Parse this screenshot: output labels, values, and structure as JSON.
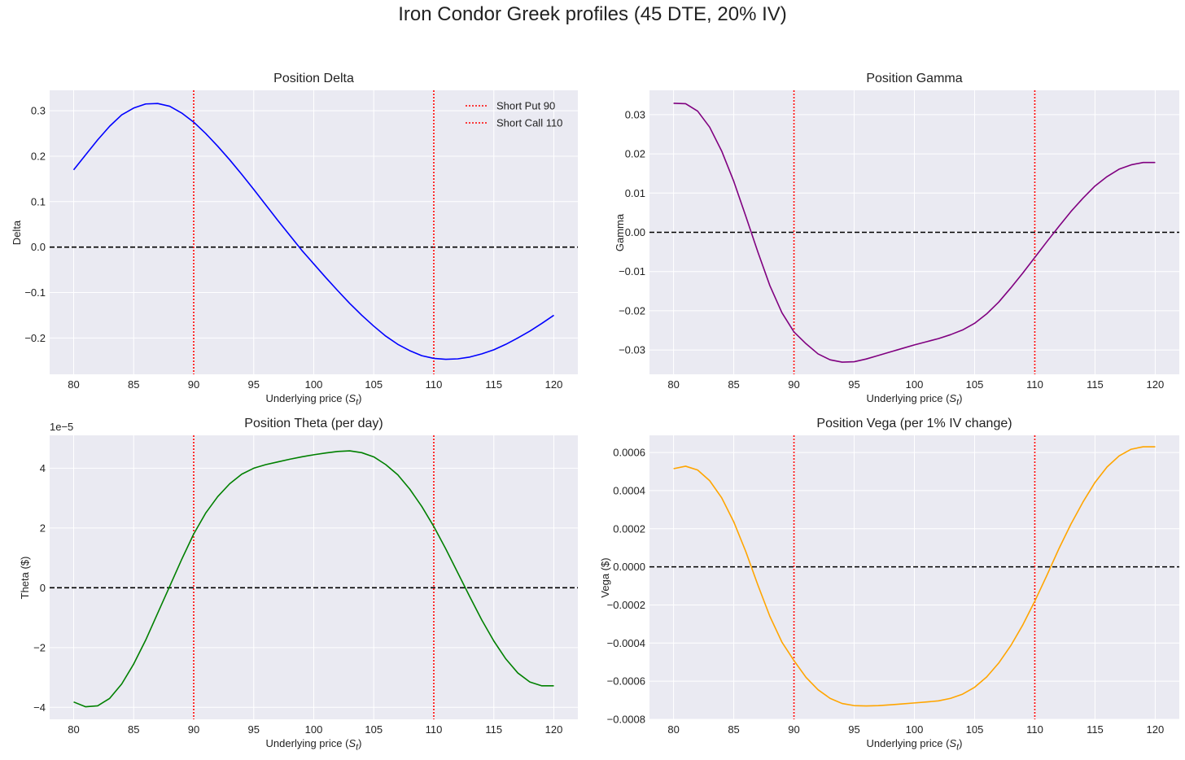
{
  "suptitle": "Iron Condor Greek profiles (45 DTE, 20% IV)",
  "x_values": [
    80,
    81,
    82,
    83,
    84,
    85,
    86,
    87,
    88,
    89,
    90,
    91,
    92,
    93,
    94,
    95,
    96,
    97,
    98,
    99,
    100,
    101,
    102,
    103,
    104,
    105,
    106,
    107,
    108,
    109,
    110,
    111,
    112,
    113,
    114,
    115,
    116,
    117,
    118,
    119,
    120
  ],
  "strikes": {
    "short_put": 90,
    "short_call": 110
  },
  "colors": {
    "reference_line": "#ff0000",
    "zero_line": "#000000",
    "panel_bg": "#eaeaf2",
    "grid": "#ffffff"
  },
  "chart_data": [
    {
      "type": "line",
      "title": "Position Delta",
      "xlabel": "Underlying price ($S_t$)",
      "xlabel_text": "Underlying price (",
      "xlabel_sym": "S",
      "xlabel_sub": "t",
      "xlabel_close": ")",
      "ylabel": "Delta",
      "xlim": [
        78,
        122
      ],
      "ylim": [
        -0.28,
        0.345
      ],
      "xticks": [
        80,
        85,
        90,
        95,
        100,
        105,
        110,
        115,
        120
      ],
      "yticks": [
        -0.2,
        -0.1,
        0.0,
        0.1,
        0.2,
        0.3
      ],
      "ytick_labels": [
        "−0.2",
        "−0.1",
        "0.0",
        "0.1",
        "0.2",
        "0.3"
      ],
      "grid": true,
      "legend": {
        "position": "top-right",
        "entries": [
          "Short Put 90",
          "Short Call 110"
        ]
      },
      "series": [
        {
          "color": "#0000ff",
          "values": [
            0.17,
            0.203,
            0.236,
            0.266,
            0.291,
            0.306,
            0.315,
            0.316,
            0.31,
            0.295,
            0.275,
            0.25,
            0.222,
            0.192,
            0.16,
            0.127,
            0.093,
            0.059,
            0.026,
            -0.007,
            -0.037,
            -0.067,
            -0.096,
            -0.124,
            -0.15,
            -0.174,
            -0.196,
            -0.214,
            -0.228,
            -0.239,
            -0.245,
            -0.247,
            -0.246,
            -0.242,
            -0.235,
            -0.226,
            -0.214,
            -0.2,
            -0.185,
            -0.168,
            -0.15
          ]
        }
      ]
    },
    {
      "type": "line",
      "title": "Position Gamma",
      "xlabel": "Underlying price ($S_t$)",
      "xlabel_text": "Underlying price (",
      "xlabel_sym": "S",
      "xlabel_sub": "t",
      "xlabel_close": ")",
      "ylabel": "Gamma",
      "xlim": [
        78,
        122
      ],
      "ylim": [
        -0.0362,
        0.0362
      ],
      "xticks": [
        80,
        85,
        90,
        95,
        100,
        105,
        110,
        115,
        120
      ],
      "yticks": [
        -0.03,
        -0.02,
        -0.01,
        0.0,
        0.01,
        0.02,
        0.03
      ],
      "ytick_labels": [
        "−0.03",
        "−0.02",
        "−0.01",
        "0.00",
        "0.01",
        "0.02",
        "0.03"
      ],
      "grid": true,
      "series": [
        {
          "color": "#800080",
          "values": [
            0.0329,
            0.0328,
            0.0309,
            0.0268,
            0.0207,
            0.013,
            0.0041,
            -0.005,
            -0.0136,
            -0.0205,
            -0.0254,
            -0.0284,
            -0.031,
            -0.0325,
            -0.0331,
            -0.033,
            -0.0323,
            -0.0314,
            -0.0305,
            -0.0296,
            -0.0287,
            -0.0279,
            -0.0271,
            -0.0261,
            -0.0249,
            -0.0232,
            -0.0208,
            -0.0178,
            -0.0142,
            -0.0104,
            -0.0064,
            -0.0024,
            0.0015,
            0.0053,
            0.0087,
            0.0118,
            0.0142,
            0.0161,
            0.0172,
            0.0178,
            0.0178
          ]
        }
      ]
    },
    {
      "type": "line",
      "title": "Position Theta (per day)",
      "xlabel": "Underlying price ($S_t$)",
      "xlabel_text": "Underlying price (",
      "xlabel_sym": "S",
      "xlabel_sub": "t",
      "xlabel_close": ")",
      "ylabel": "Theta ($)",
      "offset_label": "1e−5",
      "xlim": [
        78,
        122
      ],
      "ylim": [
        -4.4,
        5.1
      ],
      "xticks": [
        80,
        85,
        90,
        95,
        100,
        105,
        110,
        115,
        120
      ],
      "yticks": [
        -4,
        -2,
        0,
        2,
        4
      ],
      "ytick_labels": [
        "−4",
        "−2",
        "0",
        "2",
        "4"
      ],
      "grid": true,
      "series": [
        {
          "color": "#008000",
          "values": [
            -3.82,
            -3.98,
            -3.95,
            -3.7,
            -3.22,
            -2.55,
            -1.75,
            -0.85,
            0.05,
            0.95,
            1.8,
            2.5,
            3.05,
            3.48,
            3.8,
            4.0,
            4.12,
            4.21,
            4.3,
            4.38,
            4.45,
            4.51,
            4.56,
            4.58,
            4.52,
            4.38,
            4.12,
            3.78,
            3.3,
            2.72,
            2.05,
            1.3,
            0.5,
            -0.3,
            -1.08,
            -1.78,
            -2.38,
            -2.85,
            -3.15,
            -3.28,
            -3.28
          ]
        }
      ]
    },
    {
      "type": "line",
      "title": "Position Vega (per 1% IV change)",
      "xlabel": "Underlying price ($S_t$)",
      "xlabel_text": "Underlying price (",
      "xlabel_sym": "S",
      "xlabel_sub": "t",
      "xlabel_close": ")",
      "ylabel": "Vega ($)",
      "xlim": [
        78,
        122
      ],
      "ylim": [
        -0.0008,
        0.00069
      ],
      "xticks": [
        80,
        85,
        90,
        95,
        100,
        105,
        110,
        115,
        120
      ],
      "yticks": [
        -0.0008,
        -0.0006,
        -0.0004,
        -0.0002,
        0.0,
        0.0002,
        0.0004,
        0.0006
      ],
      "ytick_labels": [
        "−0.0008",
        "−0.0006",
        "−0.0004",
        "−0.0002",
        "0.0000",
        "0.0002",
        "0.0004",
        "0.0006"
      ],
      "grid": true,
      "series": [
        {
          "color": "#ffa500",
          "values": [
            0.000515,
            0.000528,
            0.000508,
            0.000452,
            0.000362,
            0.000236,
            8e-05,
            -9.5e-05,
            -0.00026,
            -0.000395,
            -0.000492,
            -0.00058,
            -0.000645,
            -0.00069,
            -0.000717,
            -0.000728,
            -0.00073,
            -0.000728,
            -0.000724,
            -0.000719,
            -0.000714,
            -0.000709,
            -0.000703,
            -0.00069,
            -0.000668,
            -0.000632,
            -0.000578,
            -0.000505,
            -0.000414,
            -0.000305,
            -0.00018,
            -4.5e-05,
            9.5e-05,
            0.000224,
            0.00034,
            0.000443,
            0.000524,
            0.000582,
            0.000617,
            0.00063,
            0.00063
          ]
        }
      ]
    }
  ]
}
